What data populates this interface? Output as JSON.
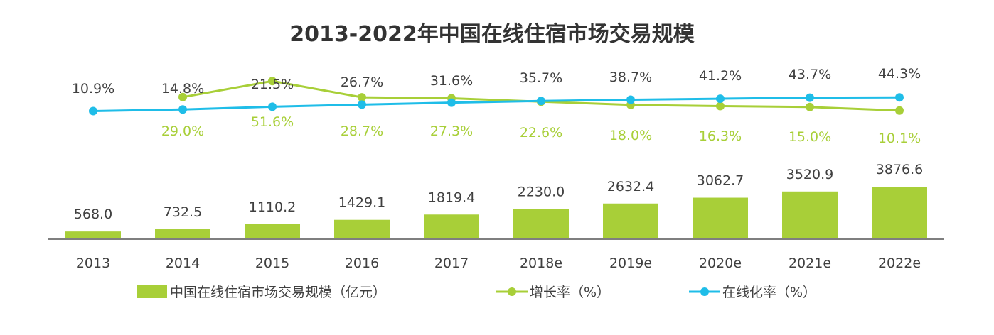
{
  "chart_data": {
    "type": "bar",
    "title": "2013-2022年中国在线住宿市场交易规模",
    "categories": [
      "2013",
      "2014",
      "2015",
      "2016",
      "2017",
      "2018e",
      "2019e",
      "2020e",
      "2021e",
      "2022e"
    ],
    "series": [
      {
        "name": "中国在线住宿市场交易规模（亿元）",
        "type": "bar",
        "color": "#a8cf38",
        "values": [
          568.0,
          732.5,
          1110.2,
          1429.1,
          1819.4,
          2230.0,
          2632.4,
          3062.7,
          3520.9,
          3876.6
        ],
        "labels": [
          "568.0",
          "732.5",
          "1110.2",
          "1429.1",
          "1819.4",
          "2230.0",
          "2632.4",
          "3062.7",
          "3520.9",
          "3876.6"
        ]
      },
      {
        "name": "增长率（%）",
        "type": "line",
        "color": "#a8cf38",
        "values": [
          null,
          29.0,
          51.6,
          28.7,
          27.3,
          22.6,
          18.0,
          16.3,
          15.0,
          10.1
        ],
        "labels": [
          "",
          "29.0%",
          "51.6%",
          "28.7%",
          "27.3%",
          "22.6%",
          "18.0%",
          "16.3%",
          "15.0%",
          "10.1%"
        ]
      },
      {
        "name": "在线化率（%）",
        "type": "line",
        "color": "#1fbde8",
        "values": [
          10.9,
          14.8,
          21.5,
          26.7,
          31.6,
          35.7,
          38.7,
          41.2,
          43.7,
          44.3
        ],
        "labels": [
          "10.9%",
          "14.8%",
          "21.5%",
          "26.7%",
          "31.6%",
          "35.7%",
          "38.7%",
          "41.2%",
          "43.7%",
          "44.3%"
        ]
      }
    ],
    "legend_position": "bottom",
    "grid": false
  }
}
